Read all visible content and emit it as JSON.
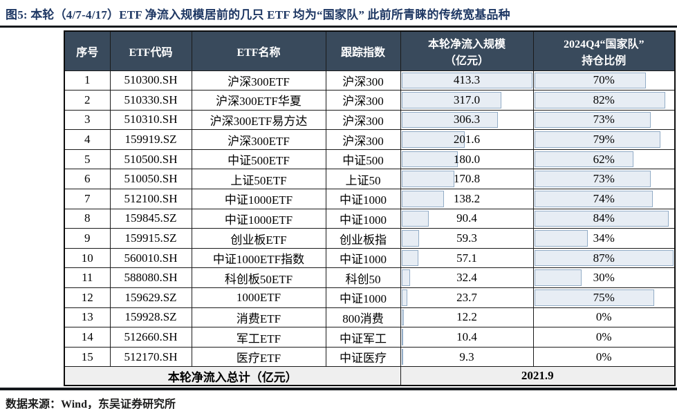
{
  "figure": {
    "title": "图5:  本轮（4/7-4/17）ETF 净流入规模居前的几只 ETF 均为“国家队” 此前所青睐的传统宽基品种",
    "source_prefix": "数据来源：",
    "source_wind": "Wind",
    "source_comma": "，",
    "source_broker": "东吴证券",
    "source_suffix": "研究所"
  },
  "colors": {
    "title_text": "#1F3864",
    "header_bg": "#394A5C",
    "header_text": "#FFFFFF",
    "databar_fill": "#E7EDF4",
    "databar_border": "#92ACC6",
    "total_row_bg": "#EFEFEF",
    "link_underline": "#33A6A0"
  },
  "table": {
    "headers": {
      "no": "序号",
      "code": "ETF代码",
      "name": "ETF名称",
      "index": "跟踪指数",
      "inflow_line1": "本轮净流入规模",
      "inflow_line2": "（亿元）",
      "holding_line1": "2024Q4“国家队”",
      "holding_line2": "持仓比例"
    },
    "inflow_bar_max": 413.3,
    "holding_bar_max": 87,
    "rows": [
      {
        "no": "1",
        "code": "510300.SH",
        "name": "沪深300ETF",
        "index": "沪深300",
        "inflow": "413.3",
        "inflow_val": 413.3,
        "holding": "70%",
        "holding_val": 70
      },
      {
        "no": "2",
        "code": "510330.SH",
        "name": "沪深300ETF华夏",
        "index": "沪深300",
        "inflow": "317.0",
        "inflow_val": 317.0,
        "holding": "82%",
        "holding_val": 82
      },
      {
        "no": "3",
        "code": "510310.SH",
        "name": "沪深300ETF易方达",
        "index": "沪深300",
        "inflow": "306.3",
        "inflow_val": 306.3,
        "holding": "73%",
        "holding_val": 73
      },
      {
        "no": "4",
        "code": "159919.SZ",
        "name": "沪深300ETF",
        "index": "沪深300",
        "inflow": "201.6",
        "inflow_val": 201.6,
        "holding": "79%",
        "holding_val": 79
      },
      {
        "no": "5",
        "code": "510500.SH",
        "name": "中证500ETF",
        "index": "中证500",
        "inflow": "180.0",
        "inflow_val": 180.0,
        "holding": "62%",
        "holding_val": 62
      },
      {
        "no": "6",
        "code": "510050.SH",
        "name": "上证50ETF",
        "index": "上证50",
        "inflow": "170.8",
        "inflow_val": 170.8,
        "holding": "73%",
        "holding_val": 73
      },
      {
        "no": "7",
        "code": "512100.SH",
        "name": "中证1000ETF",
        "index": "中证1000",
        "inflow": "138.2",
        "inflow_val": 138.2,
        "holding": "74%",
        "holding_val": 74
      },
      {
        "no": "8",
        "code": "159845.SZ",
        "name": "中证1000ETF",
        "index": "中证1000",
        "inflow": "90.4",
        "inflow_val": 90.4,
        "holding": "84%",
        "holding_val": 84
      },
      {
        "no": "9",
        "code": "159915.SZ",
        "name": "创业板ETF",
        "index": "创业板指",
        "inflow": "59.3",
        "inflow_val": 59.3,
        "holding": "34%",
        "holding_val": 34
      },
      {
        "no": "10",
        "code": "560010.SH",
        "name": "中证1000ETF指数",
        "index": "中证1000",
        "inflow": "57.1",
        "inflow_val": 57.1,
        "holding": "87%",
        "holding_val": 87
      },
      {
        "no": "11",
        "code": "588080.SH",
        "name": "科创板50ETF",
        "index": "科创50",
        "inflow": "32.4",
        "inflow_val": 32.4,
        "holding": "30%",
        "holding_val": 30
      },
      {
        "no": "12",
        "code": "159629.SZ",
        "name": "1000ETF",
        "index": "中证1000",
        "inflow": "23.7",
        "inflow_val": 23.7,
        "holding": "75%",
        "holding_val": 75
      },
      {
        "no": "13",
        "code": "159928.SZ",
        "name": "消费ETF",
        "index": "800消费",
        "inflow": "12.2",
        "inflow_val": 12.2,
        "holding": "0%",
        "holding_val": 0
      },
      {
        "no": "14",
        "code": "512660.SH",
        "name": "军工ETF",
        "index": "中证军工",
        "inflow": "10.4",
        "inflow_val": 10.4,
        "holding": "0%",
        "holding_val": 0
      },
      {
        "no": "15",
        "code": "512170.SH",
        "name": "医疗ETF",
        "index": "中证医疗",
        "inflow": "9.3",
        "inflow_val": 9.3,
        "holding": "0%",
        "holding_val": 0
      }
    ],
    "total": {
      "label": "本轮净流入总计（亿元）",
      "value": "2021.9"
    }
  }
}
